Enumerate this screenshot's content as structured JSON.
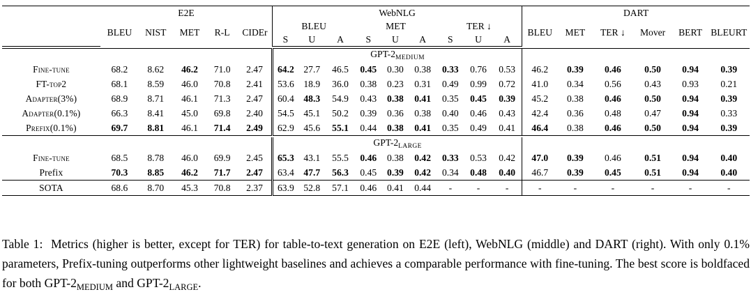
{
  "datasets": {
    "e2e": "E2E",
    "webnlg": "WebNLG",
    "dart": "DART"
  },
  "metric_headers": {
    "e2e": [
      "BLEU",
      "NIST",
      "MET",
      "R-L",
      "CIDEr"
    ],
    "webnlg_groups": [
      "BLEU",
      "MET",
      "TER ↓"
    ],
    "webnlg_splits": [
      "S",
      "U",
      "A",
      "S",
      "U",
      "A",
      "S",
      "U",
      "A"
    ],
    "dart": [
      "BLEU",
      "MET",
      "TER ↓",
      "Mover",
      "BERT",
      "BLEURT"
    ]
  },
  "sections": [
    {
      "model_prefix": "GPT-2",
      "model_sub": "MEDIUM",
      "rows": [
        {
          "method": "Fine-tune",
          "smallcaps": true,
          "values": [
            "68.2",
            "8.62",
            "46.2",
            "71.0",
            "2.47",
            "64.2",
            "27.7",
            "46.5",
            "0.45",
            "0.30",
            "0.38",
            "0.33",
            "0.76",
            "0.53",
            "46.2",
            "0.39",
            "0.46",
            "0.50",
            "0.94",
            "0.39"
          ],
          "bold": [
            2,
            5,
            8,
            11,
            15,
            16,
            17,
            18,
            19
          ]
        },
        {
          "method": "FT-top2",
          "smallcaps": true,
          "values": [
            "68.1",
            "8.59",
            "46.0",
            "70.8",
            "2.41",
            "53.6",
            "18.9",
            "36.0",
            "0.38",
            "0.23",
            "0.31",
            "0.49",
            "0.99",
            "0.72",
            "41.0",
            "0.34",
            "0.56",
            "0.43",
            "0.93",
            "0.21"
          ],
          "bold": []
        },
        {
          "method": "Adapter(3%)",
          "smallcaps": true,
          "values": [
            "68.9",
            "8.71",
            "46.1",
            "71.3",
            "2.47",
            "60.4",
            "48.3",
            "54.9",
            "0.43",
            "0.38",
            "0.41",
            "0.35",
            "0.45",
            "0.39",
            "45.2",
            "0.38",
            "0.46",
            "0.50",
            "0.94",
            "0.39"
          ],
          "bold": [
            6,
            9,
            10,
            12,
            13,
            16,
            17,
            18,
            19
          ]
        },
        {
          "method": "Adapter(0.1%)",
          "smallcaps": true,
          "values": [
            "66.3",
            "8.41",
            "45.0",
            "69.8",
            "2.40",
            "54.5",
            "45.1",
            "50.2",
            "0.39",
            "0.36",
            "0.38",
            "0.40",
            "0.46",
            "0.43",
            "42.4",
            "0.36",
            "0.48",
            "0.47",
            "0.94",
            "0.33"
          ],
          "bold": [
            18
          ]
        },
        {
          "method": "Prefix(0.1%)",
          "smallcaps": true,
          "values": [
            "69.7",
            "8.81",
            "46.1",
            "71.4",
            "2.49",
            "62.9",
            "45.6",
            "55.1",
            "0.44",
            "0.38",
            "0.41",
            "0.35",
            "0.49",
            "0.41",
            "46.4",
            "0.38",
            "0.46",
            "0.50",
            "0.94",
            "0.39"
          ],
          "bold": [
            0,
            1,
            3,
            4,
            7,
            9,
            10,
            14,
            16,
            17,
            18,
            19
          ]
        }
      ]
    },
    {
      "model_prefix": "GPT-2",
      "model_sub": "LARGE",
      "rows": [
        {
          "method": "Fine-tune",
          "smallcaps": true,
          "values": [
            "68.5",
            "8.78",
            "46.0",
            "69.9",
            "2.45",
            "65.3",
            "43.1",
            "55.5",
            "0.46",
            "0.38",
            "0.42",
            "0.33",
            "0.53",
            "0.42",
            "47.0",
            "0.39",
            "0.46",
            "0.51",
            "0.94",
            "0.40"
          ],
          "bold": [
            5,
            8,
            10,
            11,
            14,
            15,
            17,
            18,
            19
          ]
        },
        {
          "method": "Prefix",
          "smallcaps": false,
          "values": [
            "70.3",
            "8.85",
            "46.2",
            "71.7",
            "2.47",
            "63.4",
            "47.7",
            "56.3",
            "0.45",
            "0.39",
            "0.42",
            "0.34",
            "0.48",
            "0.40",
            "46.7",
            "0.39",
            "0.45",
            "0.51",
            "0.94",
            "0.40"
          ],
          "bold": [
            0,
            1,
            2,
            3,
            4,
            6,
            7,
            9,
            10,
            12,
            13,
            15,
            16,
            17,
            18,
            19
          ]
        }
      ]
    }
  ],
  "sota": {
    "method": "SOTA",
    "values": [
      "68.6",
      "8.70",
      "45.3",
      "70.8",
      "2.37",
      "63.9",
      "52.8",
      "57.1",
      "0.46",
      "0.41",
      "0.44",
      "-",
      "-",
      "-",
      "-",
      "-",
      "-",
      "-",
      "-",
      "-"
    ]
  },
  "caption": {
    "label": "Table 1:",
    "text_1": "Metrics (higher is better, except for TER) for table-to-text generation on E2E (left), WebNLG (middle) and DART (right). With only",
    "pct": "0.1%",
    "text_2": "parameters, Prefix-tuning outperforms other lightweight baselines and achieves a comparable performance with fine-tuning. The best score is boldfaced for both",
    "model_a_prefix": "GPT-2",
    "model_a_sub": "MEDIUM",
    "and_word": "and",
    "model_b_prefix": "GPT-2",
    "model_b_sub": "LARGE",
    "end": "."
  }
}
